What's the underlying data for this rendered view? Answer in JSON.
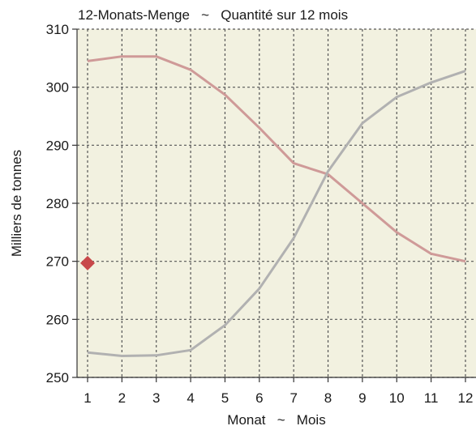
{
  "chart_data": {
    "type": "line",
    "title": "12-Monats-Menge   ~   Quantité sur 12 mois",
    "xlabel": "Monat   ~   Mois",
    "ylabel": "Milliers de tonnes",
    "x": [
      1,
      2,
      3,
      4,
      5,
      6,
      7,
      8,
      9,
      10,
      11,
      12
    ],
    "xlim": [
      1,
      12
    ],
    "ylim": [
      250,
      310
    ],
    "yticks": [
      250,
      260,
      270,
      280,
      290,
      300,
      310
    ],
    "grid": true,
    "legend": "none",
    "background": "#f2f1e0",
    "series": [
      {
        "color": "#cf9a98",
        "values": [
          304.5,
          305.3,
          305.3,
          303.0,
          298.7,
          293.0,
          286.9,
          285.0,
          280.0,
          275.0,
          271.3,
          270.0
        ]
      },
      {
        "color": "#b1b1b1",
        "values": [
          254.3,
          253.7,
          253.8,
          254.7,
          259.0,
          265.3,
          274.0,
          285.5,
          293.8,
          298.3,
          300.8,
          302.8
        ]
      }
    ],
    "markers": [
      {
        "shape": "diamond",
        "color": "#c8484a",
        "x": 1,
        "y": 269.7
      }
    ]
  }
}
